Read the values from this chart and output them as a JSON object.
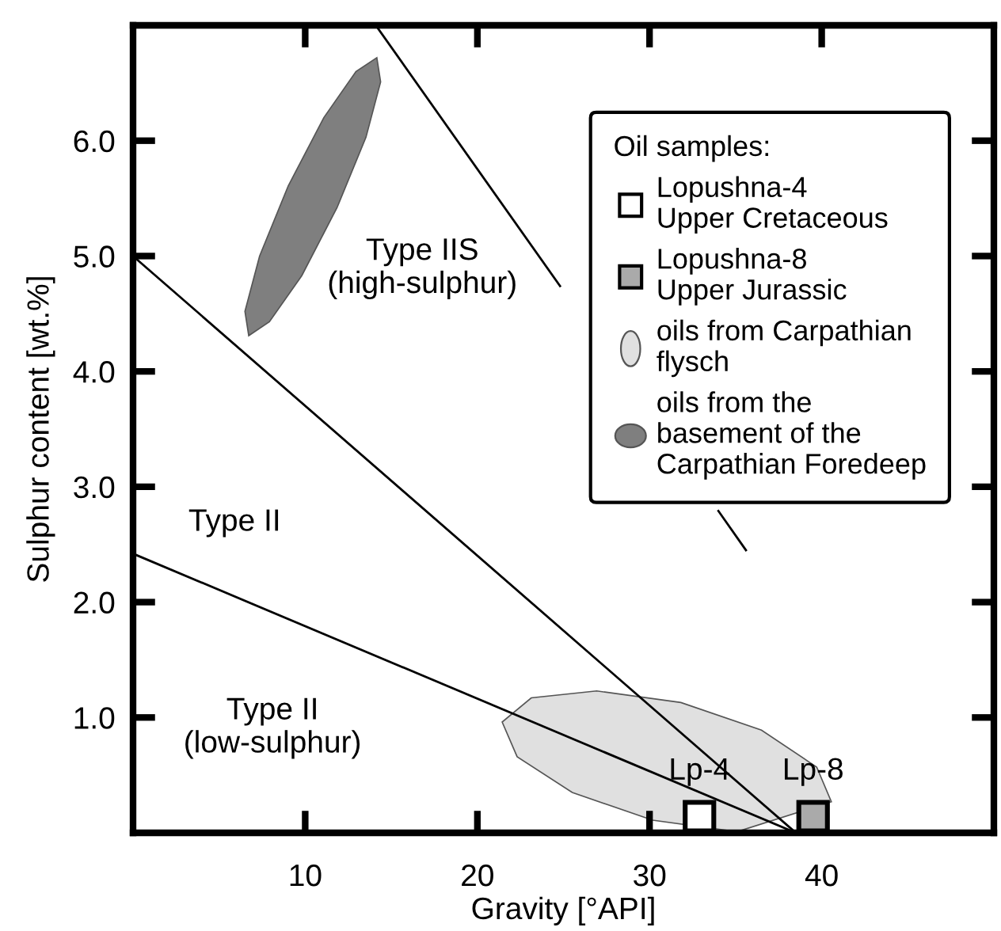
{
  "chart_data": {
    "type": "scatter",
    "xlabel": "Gravity [°API]",
    "ylabel": "Sulphur content [wt.%]",
    "legend_title": "Oil samples:",
    "legend": "top right",
    "grid": false,
    "xlim": [
      0,
      50
    ],
    "xticks": [
      10,
      20,
      30,
      40
    ],
    "ylim": [
      0,
      7
    ],
    "yticks": [
      {
        "value": 1,
        "label": "1.0"
      },
      {
        "value": 2,
        "label": "2.0"
      },
      {
        "value": 3,
        "label": "3.0"
      },
      {
        "value": 4,
        "label": "4.0"
      },
      {
        "value": 5,
        "label": "5.0"
      },
      {
        "value": 6,
        "label": "6.0"
      }
    ],
    "series": [
      {
        "name": "Lopushna-4\nUpper Cretaceous",
        "type": "scatter",
        "marker": "square",
        "color": "#ffffff",
        "x": [
          32.9
        ],
        "values": [
          0.14
        ]
      },
      {
        "name": "Lopushna-8\nUpper Jurassic",
        "type": "scatter",
        "marker": "square",
        "color": "#aaaaaa",
        "x": [
          39.5
        ],
        "values": [
          0.14
        ]
      },
      {
        "name": "oils from Carpathian\nflysch",
        "type": "area",
        "color": "#e0e0e0",
        "x": [
          40.56,
          38.88,
          35.08,
          30.18,
          25.51,
          22.31,
          21.44,
          23.13,
          26.93,
          31.82,
          36.5,
          39.71,
          40.56
        ],
        "values": [
          0.27,
          null,
          0.01,
          0.11,
          0.35,
          0.66,
          0.96,
          1.17,
          1.23,
          1.13,
          0.89,
          0.57,
          0.27
        ]
      },
      {
        "name": "oils from the\nbasement of the\nCarpathian Foredeep",
        "type": "area",
        "color": "#7f7f7f",
        "x": [
          14.16,
          14.38,
          13.53,
          11.85,
          9.8,
          7.92,
          6.72,
          6.5,
          7.35,
          9.02,
          11.08,
          12.95,
          14.16
        ],
        "values": [
          6.72,
          6.51,
          6.03,
          5.42,
          4.83,
          4.43,
          4.31,
          4.52,
          5.0,
          5.61,
          6.2,
          6.6,
          6.72
        ]
      },
      {
        "type": "line",
        "color": "#000000",
        "x": [
          0,
          38.5
        ],
        "values": [
          5.0,
          0
        ]
      },
      {
        "type": "line",
        "color": "#000000",
        "x": [
          0,
          38.5
        ],
        "values": [
          2.42,
          0
        ]
      },
      {
        "type": "line",
        "color": "#000000",
        "x": [
          14.1,
          24.8,
          28.0,
          34.0,
          35.6
        ],
        "values": [
          7.0,
          4.74,
          null,
          2.79,
          2.45
        ]
      }
    ],
    "annotations": [
      "Type IIS\n(high-sulphur)",
      "Type II",
      "Type II\n(low-sulphur)",
      {
        "text": "Lp-4",
        "x": 32.9,
        "y": 0.14
      },
      {
        "text": "Lp-8",
        "x": 39.5,
        "y": 0.14
      }
    ]
  }
}
